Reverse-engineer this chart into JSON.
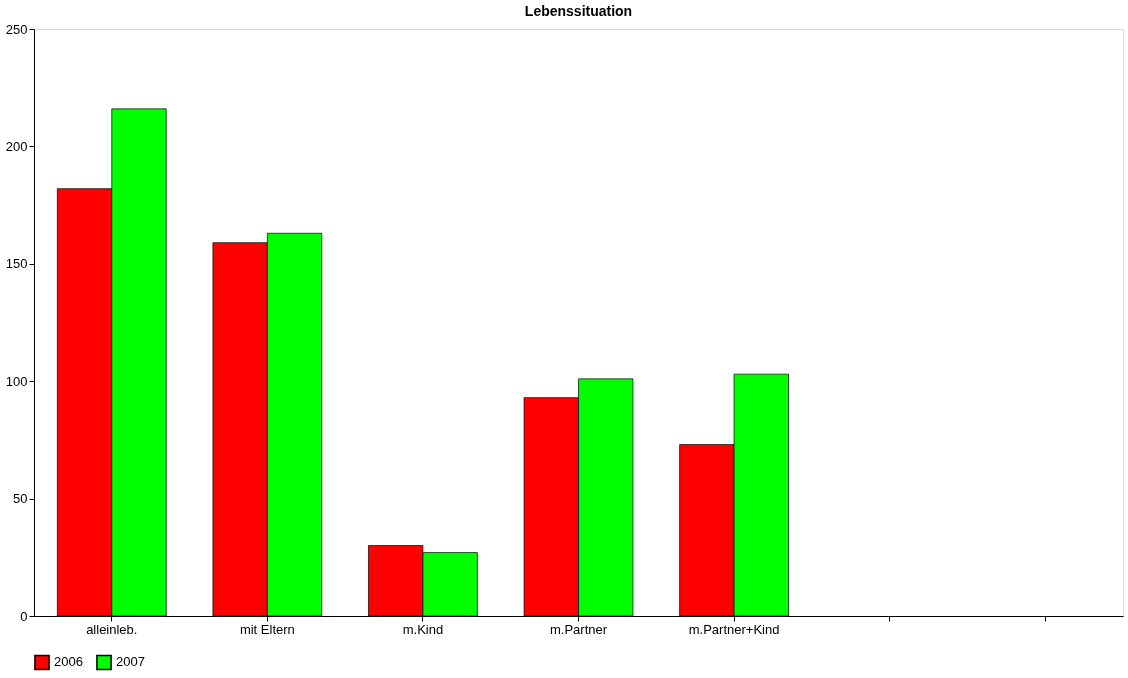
{
  "chart_data": {
    "type": "bar",
    "title": "Lebenssituation",
    "categories": [
      "alleinleb.",
      "mit Eltern",
      "m.Kind",
      "m.Partner",
      "m.Partner+Kind",
      null,
      null
    ],
    "series": [
      {
        "name": "2006",
        "color": "#ff0000",
        "values": [
          182,
          159,
          30,
          93,
          73,
          null,
          null
        ]
      },
      {
        "name": "2007",
        "color": "#00ff00",
        "values": [
          216,
          163,
          27,
          101,
          103,
          null,
          null
        ]
      }
    ],
    "ylim": [
      0,
      250
    ],
    "yticks": [
      0,
      50,
      100,
      150,
      200,
      250
    ],
    "grid": false,
    "legend": "bottom"
  }
}
